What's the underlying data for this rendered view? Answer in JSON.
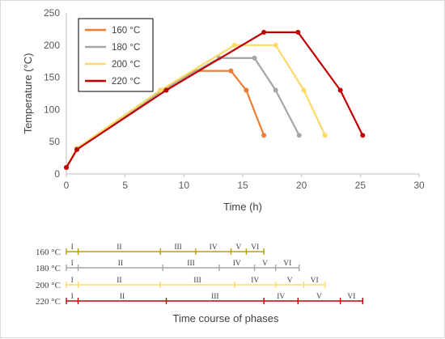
{
  "chart_data": [
    {
      "type": "line",
      "title": "",
      "xlabel": "Time (h)",
      "ylabel": "Temperature (°C)",
      "xlim": [
        0,
        30
      ],
      "ylim": [
        0,
        250
      ],
      "xticks": [
        0,
        5,
        10,
        15,
        20,
        25,
        30
      ],
      "yticks": [
        0,
        50,
        100,
        150,
        200,
        250
      ],
      "grid": false,
      "legend": "top-left",
      "series": [
        {
          "name": "160 °C",
          "color": "#ed7d31",
          "x": [
            0,
            0.9,
            8,
            11,
            14,
            15.3,
            16.8
          ],
          "y": [
            10,
            38,
            130,
            160,
            160,
            130,
            60
          ]
        },
        {
          "name": "180 °C",
          "color": "#a5a5a5",
          "x": [
            0,
            0.9,
            8.2,
            13,
            16,
            17.8,
            19.8
          ],
          "y": [
            10,
            38,
            130,
            180,
            180,
            130,
            60
          ]
        },
        {
          "name": "200 °C",
          "color": "#ffd966",
          "x": [
            0,
            0.9,
            8,
            14.3,
            17.8,
            20.2,
            22
          ],
          "y": [
            10,
            40,
            130,
            200,
            200,
            130,
            60
          ]
        },
        {
          "name": "220 °C",
          "color": "#c00000",
          "x": [
            0,
            0.9,
            8.5,
            16.8,
            19.7,
            23.3,
            25.2
          ],
          "y": [
            10,
            38,
            130,
            220,
            220,
            130,
            60
          ]
        }
      ]
    },
    {
      "type": "timeline",
      "title": "Time course of phases",
      "rows": [
        {
          "label": "160 °C",
          "color": "#b8a000",
          "bounds": [
            0,
            1,
            8,
            11,
            14,
            15.3,
            16.8
          ],
          "phases": [
            "I",
            "II",
            "III",
            "IV",
            "V",
            "VI"
          ]
        },
        {
          "label": "180 °C",
          "color": "#a5a5a5",
          "bounds": [
            0,
            1,
            8.2,
            13,
            16,
            17.8,
            19.8
          ],
          "phases": [
            "I",
            "II",
            "III",
            "IV",
            "V",
            "VI"
          ]
        },
        {
          "label": "200 °C",
          "color": "#ffd966",
          "bounds": [
            0,
            1,
            8,
            14.3,
            17.8,
            20.2,
            22
          ],
          "phases": [
            "I",
            "II",
            "III",
            "IV",
            "V",
            "VI"
          ]
        },
        {
          "label": "220 °C",
          "color": "#c00000",
          "bounds": [
            0,
            1,
            8.5,
            16.8,
            19.7,
            23.3,
            25.2
          ],
          "phases": [
            "I",
            "II",
            "III",
            "IV",
            "V",
            "VI"
          ]
        }
      ]
    }
  ]
}
